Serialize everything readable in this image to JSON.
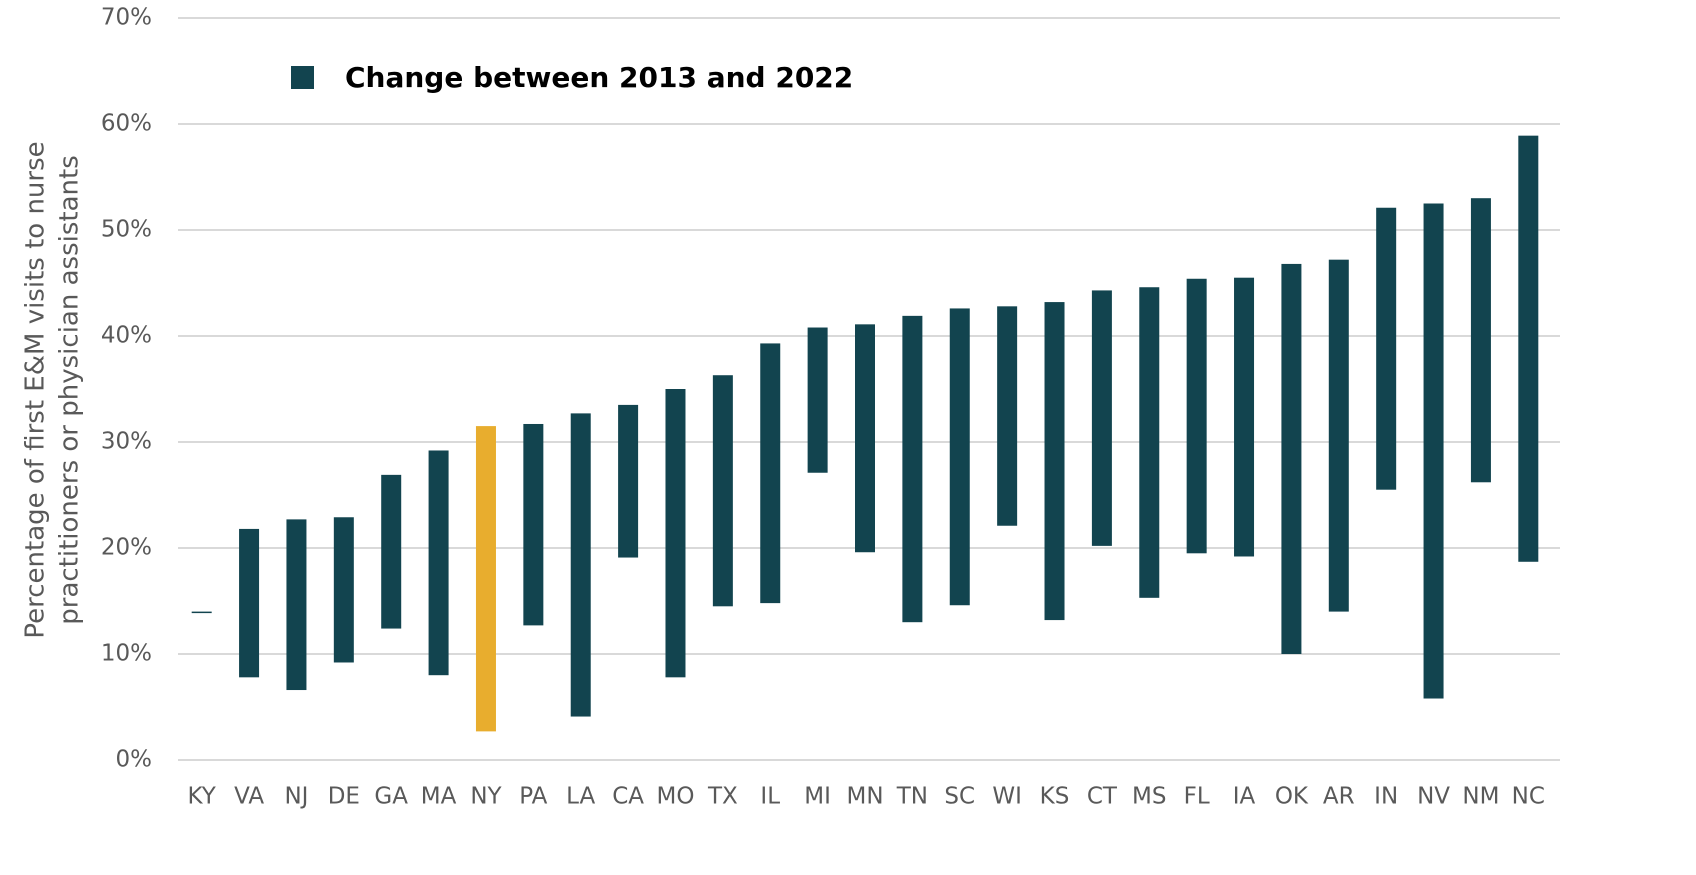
{
  "chart_data": {
    "type": "range_bar",
    "ylabel": [
      "Percentage of first E&M visits to nurse",
      "practitioners or physician assistants"
    ],
    "categories": [
      "KY",
      "VA",
      "NJ",
      "DE",
      "GA",
      "MA",
      "NY",
      "PA",
      "LA",
      "CA",
      "MO",
      "TX",
      "IL",
      "MI",
      "MN",
      "TN",
      "SC",
      "WI",
      "KS",
      "CT",
      "MS",
      "FL",
      "IA",
      "OK",
      "AR",
      "IN",
      "NV",
      "NM",
      "NC"
    ],
    "series": [
      {
        "name": "Change between 2013 and 2022",
        "color": "#12444f",
        "low": [
          13.9,
          7.8,
          6.6,
          9.2,
          12.4,
          8.0,
          2.7,
          12.7,
          4.1,
          19.1,
          7.8,
          14.5,
          14.8,
          27.1,
          19.6,
          13.0,
          14.6,
          22.1,
          13.2,
          20.2,
          15.3,
          19.5,
          19.2,
          10.0,
          14.0,
          25.5,
          5.8,
          26.2,
          18.7
        ],
        "high": [
          14.0,
          21.8,
          22.7,
          22.9,
          26.9,
          29.2,
          31.5,
          31.7,
          32.7,
          33.5,
          35.0,
          36.3,
          39.3,
          40.8,
          41.1,
          41.9,
          42.6,
          42.8,
          43.2,
          44.3,
          44.6,
          45.4,
          45.5,
          46.8,
          47.2,
          52.1,
          52.5,
          53.0,
          58.9
        ],
        "bar_colors": [
          "#12444f",
          "#12444f",
          "#12444f",
          "#12444f",
          "#12444f",
          "#12444f",
          "#e8ad2e",
          "#12444f",
          "#12444f",
          "#12444f",
          "#12444f",
          "#12444f",
          "#12444f",
          "#12444f",
          "#12444f",
          "#12444f",
          "#12444f",
          "#12444f",
          "#12444f",
          "#12444f",
          "#12444f",
          "#12444f",
          "#12444f",
          "#12444f",
          "#12444f",
          "#12444f",
          "#12444f",
          "#12444f",
          "#12444f"
        ]
      }
    ],
    "ylim": [
      0,
      70
    ],
    "yticks": [
      {
        "value": 0,
        "label": "0%"
      },
      {
        "value": 10,
        "label": "10%"
      },
      {
        "value": 20,
        "label": "20%"
      },
      {
        "value": 30,
        "label": "30%"
      },
      {
        "value": 40,
        "label": "40%"
      },
      {
        "value": 50,
        "label": "50%"
      },
      {
        "value": 60,
        "label": "60%"
      },
      {
        "value": 70,
        "label": "70%"
      }
    ],
    "grid": true
  }
}
